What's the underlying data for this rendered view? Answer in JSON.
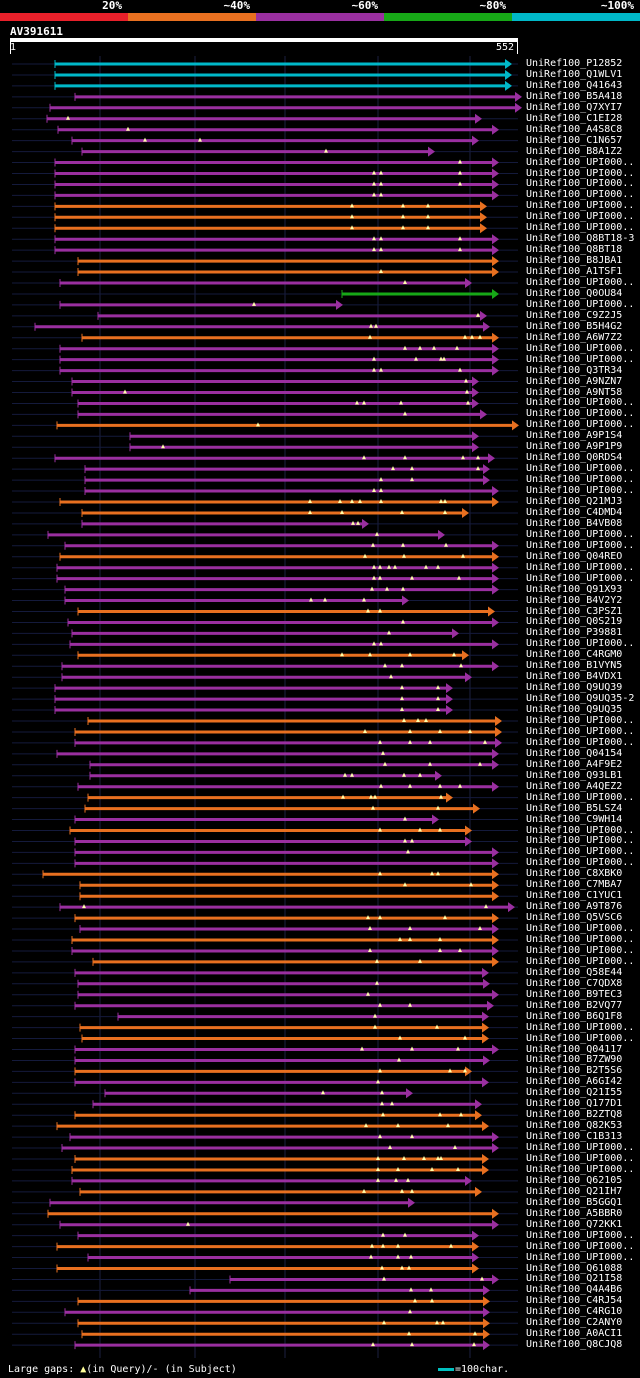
{
  "legend": [
    {
      "label": "20%",
      "color": "#e8202a"
    },
    {
      "label": "~40%",
      "color": "#e87020"
    },
    {
      "label": "~60%",
      "color": "#9a2fa0"
    },
    {
      "label": "~80%",
      "color": "#17a817"
    },
    {
      "label": "~100%",
      "color": "#00b8c8"
    }
  ],
  "query": {
    "id": "AV391611",
    "start": "1",
    "end": "552",
    "length": 552
  },
  "gap_color": "#ffffaa",
  "hits": [
    {
      "name": "UniRef100_P12852",
      "s": 55,
      "e": 505,
      "c": "cyan",
      "g": []
    },
    {
      "name": "UniRef100_Q1WLV1",
      "s": 55,
      "e": 505,
      "c": "cyan",
      "g": []
    },
    {
      "name": "UniRef100_Q41643",
      "s": 55,
      "e": 505,
      "c": "cyan",
      "g": []
    },
    {
      "name": "UniRef100_B5A418",
      "s": 75,
      "e": 515,
      "c": "purple",
      "g": []
    },
    {
      "name": "UniRef100_Q7XYI7",
      "s": 50,
      "e": 515,
      "c": "purple",
      "g": []
    },
    {
      "name": "UniRef100_C1EI28",
      "s": 47,
      "e": 475,
      "c": "purple",
      "g": [
        68
      ]
    },
    {
      "name": "UniRef100_A4S8C8",
      "s": 58,
      "e": 492,
      "c": "purple",
      "g": [
        128
      ]
    },
    {
      "name": "UniRef100_C1N657",
      "s": 72,
      "e": 472,
      "c": "purple",
      "g": [
        145,
        200
      ]
    },
    {
      "name": "UniRef100_B8A1Z2",
      "s": 82,
      "e": 428,
      "c": "purple",
      "g": [
        326
      ]
    },
    {
      "name": "UniRef100_UPI000..",
      "s": 55,
      "e": 492,
      "c": "purple",
      "g": [
        460
      ]
    },
    {
      "name": "UniRef100_UPI000..",
      "s": 55,
      "e": 492,
      "c": "purple",
      "g": [
        374,
        381,
        460
      ]
    },
    {
      "name": "UniRef100_UPI000..",
      "s": 55,
      "e": 492,
      "c": "purple",
      "g": [
        374,
        381,
        460
      ]
    },
    {
      "name": "UniRef100_UPI000..",
      "s": 55,
      "e": 492,
      "c": "purple",
      "g": [
        374,
        381
      ]
    },
    {
      "name": "UniRef100_UPI000..",
      "s": 55,
      "e": 480,
      "c": "orange",
      "g": [
        352,
        403,
        428
      ]
    },
    {
      "name": "UniRef100_UPI000..",
      "s": 55,
      "e": 480,
      "c": "orange",
      "g": [
        352,
        403,
        428
      ]
    },
    {
      "name": "UniRef100_UPI000..",
      "s": 55,
      "e": 480,
      "c": "orange",
      "g": [
        352,
        403,
        428
      ]
    },
    {
      "name": "UniRef100_Q8BT18-3",
      "s": 55,
      "e": 492,
      "c": "purple",
      "g": [
        374,
        381,
        460
      ]
    },
    {
      "name": "UniRef100_Q8BT18",
      "s": 55,
      "e": 492,
      "c": "purple",
      "g": [
        374,
        381,
        460
      ]
    },
    {
      "name": "UniRef100_B8JBA1",
      "s": 78,
      "e": 492,
      "c": "orange",
      "g": []
    },
    {
      "name": "UniRef100_A1TSF1",
      "s": 78,
      "e": 492,
      "c": "orange",
      "g": [
        381
      ]
    },
    {
      "name": "UniRef100_UPI000..",
      "s": 60,
      "e": 465,
      "c": "purple",
      "g": [
        405
      ]
    },
    {
      "name": "UniRef100_Q0OU84",
      "s": 342,
      "e": 492,
      "c": "green",
      "g": []
    },
    {
      "name": "UniRef100_UPI000..",
      "s": 60,
      "e": 336,
      "c": "purple",
      "g": [
        254
      ]
    },
    {
      "name": "UniRef100_C9Z2J5",
      "s": 98,
      "e": 480,
      "c": "purple",
      "g": [
        478
      ]
    },
    {
      "name": "UniRef100_B5H4G2",
      "s": 35,
      "e": 483,
      "c": "purple",
      "g": [
        371,
        376
      ]
    },
    {
      "name": "UniRef100_A6W7Z2",
      "s": 82,
      "e": 492,
      "c": "orange",
      "g": [
        370,
        465,
        472,
        480
      ]
    },
    {
      "name": "UniRef100_UPI000..",
      "s": 60,
      "e": 492,
      "c": "purple",
      "g": [
        405,
        420,
        434,
        457
      ]
    },
    {
      "name": "UniRef100_UPI000..",
      "s": 60,
      "e": 492,
      "c": "purple",
      "g": [
        374,
        416,
        441,
        444
      ]
    },
    {
      "name": "UniRef100_Q3TR34",
      "s": 60,
      "e": 492,
      "c": "purple",
      "g": [
        374,
        381,
        460
      ]
    },
    {
      "name": "UniRef100_A9NZN7",
      "s": 72,
      "e": 472,
      "c": "purple",
      "g": [
        466
      ]
    },
    {
      "name": "UniRef100_A9NT58",
      "s": 72,
      "e": 472,
      "c": "purple",
      "g": [
        125,
        467
      ]
    },
    {
      "name": "UniRef100_UPI000..",
      "s": 78,
      "e": 472,
      "c": "purple",
      "g": [
        357,
        364,
        401,
        468
      ]
    },
    {
      "name": "UniRef100_UPI000..",
      "s": 78,
      "e": 480,
      "c": "purple",
      "g": [
        405
      ]
    },
    {
      "name": "UniRef100_UPI000..",
      "s": 57,
      "e": 512,
      "c": "orange",
      "g": [
        258
      ]
    },
    {
      "name": "UniRef100_A9P1S4",
      "s": 130,
      "e": 472,
      "c": "purple",
      "g": []
    },
    {
      "name": "UniRef100_A9P1P9",
      "s": 130,
      "e": 472,
      "c": "purple",
      "g": [
        163
      ]
    },
    {
      "name": "UniRef100_Q0RDS4",
      "s": 55,
      "e": 488,
      "c": "purple",
      "g": [
        364,
        405,
        463,
        478
      ]
    },
    {
      "name": "UniRef100_UPI000..",
      "s": 85,
      "e": 483,
      "c": "purple",
      "g": [
        393,
        412,
        478
      ]
    },
    {
      "name": "UniRef100_UPI000..",
      "s": 85,
      "e": 483,
      "c": "purple",
      "g": [
        381,
        412
      ]
    },
    {
      "name": "UniRef100_UPI000..",
      "s": 85,
      "e": 492,
      "c": "purple",
      "g": [
        374,
        381
      ]
    },
    {
      "name": "UniRef100_Q21MJ3",
      "s": 60,
      "e": 492,
      "c": "orange",
      "g": [
        310,
        340,
        352,
        360,
        381,
        441,
        445
      ]
    },
    {
      "name": "UniRef100_C4DMD4",
      "s": 82,
      "e": 462,
      "c": "orange",
      "g": [
        310,
        342,
        402,
        445
      ]
    },
    {
      "name": "UniRef100_B4VB08",
      "s": 82,
      "e": 362,
      "c": "purple",
      "g": [
        353,
        358
      ]
    },
    {
      "name": "UniRef100_UPI000..",
      "s": 48,
      "e": 438,
      "c": "purple",
      "g": [
        377
      ]
    },
    {
      "name": "UniRef100_UPI000..",
      "s": 65,
      "e": 492,
      "c": "purple",
      "g": [
        373,
        403,
        446
      ]
    },
    {
      "name": "UniRef100_Q04REO",
      "s": 60,
      "e": 492,
      "c": "orange",
      "g": [
        365,
        404,
        463
      ]
    },
    {
      "name": "UniRef100_UPI000..",
      "s": 57,
      "e": 492,
      "c": "purple",
      "g": [
        374,
        380,
        389,
        395,
        426,
        438
      ]
    },
    {
      "name": "UniRef100_UPI000..",
      "s": 57,
      "e": 492,
      "c": "purple",
      "g": [
        374,
        380,
        412,
        459
      ]
    },
    {
      "name": "UniRef100_Q91X93",
      "s": 65,
      "e": 492,
      "c": "purple",
      "g": [
        372,
        387,
        403
      ]
    },
    {
      "name": "UniRef100_B4V2Y2",
      "s": 65,
      "e": 402,
      "c": "purple",
      "g": [
        311,
        325,
        364
      ]
    },
    {
      "name": "UniRef100_C3PSZ1",
      "s": 78,
      "e": 488,
      "c": "orange",
      "g": [
        368,
        380
      ]
    },
    {
      "name": "UniRef100_Q0S219",
      "s": 68,
      "e": 492,
      "c": "purple",
      "g": [
        403
      ]
    },
    {
      "name": "UniRef100_P39881",
      "s": 72,
      "e": 452,
      "c": "purple",
      "g": [
        389
      ]
    },
    {
      "name": "UniRef100_UPI000..",
      "s": 70,
      "e": 492,
      "c": "purple",
      "g": [
        374,
        381
      ]
    },
    {
      "name": "UniRef100_C4RGM0",
      "s": 78,
      "e": 462,
      "c": "orange",
      "g": [
        342,
        370,
        410,
        454
      ]
    },
    {
      "name": "UniRef100_B1VYN5",
      "s": 62,
      "e": 492,
      "c": "purple",
      "g": [
        385,
        402,
        461
      ]
    },
    {
      "name": "UniRef100_B4VDX1",
      "s": 62,
      "e": 465,
      "c": "purple",
      "g": [
        391
      ]
    },
    {
      "name": "UniRef100_Q9UQ39",
      "s": 55,
      "e": 446,
      "c": "purple",
      "g": [
        402,
        438
      ]
    },
    {
      "name": "UniRef100_Q9UQ35-2",
      "s": 55,
      "e": 446,
      "c": "purple",
      "g": [
        402,
        438
      ]
    },
    {
      "name": "UniRef100_Q9UQ35",
      "s": 55,
      "e": 446,
      "c": "purple",
      "g": [
        402,
        438
      ]
    },
    {
      "name": "UniRef100_UPI000..",
      "s": 88,
      "e": 495,
      "c": "orange",
      "g": [
        404,
        418,
        426
      ]
    },
    {
      "name": "UniRef100_UPI000..",
      "s": 75,
      "e": 495,
      "c": "orange",
      "g": [
        365,
        410,
        440,
        470
      ]
    },
    {
      "name": "UniRef100_UPI000..",
      "s": 75,
      "e": 495,
      "c": "purple",
      "g": [
        380,
        410,
        430,
        485
      ]
    },
    {
      "name": "UniRef100_Q04154",
      "s": 57,
      "e": 492,
      "c": "purple",
      "g": [
        383
      ]
    },
    {
      "name": "UniRef100_A4F9E2",
      "s": 90,
      "e": 492,
      "c": "purple",
      "g": [
        385,
        430,
        480
      ]
    },
    {
      "name": "UniRef100_Q93LB1",
      "s": 90,
      "e": 435,
      "c": "purple",
      "g": [
        345,
        352,
        404,
        420
      ]
    },
    {
      "name": "UniRef100_A4QEZ2",
      "s": 78,
      "e": 492,
      "c": "purple",
      "g": [
        381,
        410,
        440,
        460
      ]
    },
    {
      "name": "UniRef100_UPI000..",
      "s": 88,
      "e": 446,
      "c": "orange",
      "g": [
        343,
        371,
        375,
        441
      ]
    },
    {
      "name": "UniRef100_B5LSZ4",
      "s": 85,
      "e": 473,
      "c": "orange",
      "g": [
        373,
        438
      ]
    },
    {
      "name": "UniRef100_C9WH14",
      "s": 75,
      "e": 432,
      "c": "purple",
      "g": [
        405
      ]
    },
    {
      "name": "UniRef100_UPI000..",
      "s": 70,
      "e": 465,
      "c": "orange",
      "g": [
        380,
        420,
        440
      ]
    },
    {
      "name": "UniRef100_UPI000..",
      "s": 75,
      "e": 465,
      "c": "purple",
      "g": [
        405,
        412
      ]
    },
    {
      "name": "UniRef100_UPI000..",
      "s": 75,
      "e": 492,
      "c": "purple",
      "g": [
        408
      ]
    },
    {
      "name": "UniRef100_UPI000..",
      "s": 75,
      "e": 492,
      "c": "purple",
      "g": []
    },
    {
      "name": "UniRef100_C8XBK0",
      "s": 43,
      "e": 492,
      "c": "orange",
      "g": [
        380,
        432,
        438
      ]
    },
    {
      "name": "UniRef100_C7MBA7",
      "s": 80,
      "e": 492,
      "c": "orange",
      "g": [
        405,
        471
      ]
    },
    {
      "name": "UniRef100_C1YUC1",
      "s": 80,
      "e": 492,
      "c": "orange",
      "g": []
    },
    {
      "name": "UniRef100_A9T876",
      "s": 60,
      "e": 508,
      "c": "purple",
      "g": [
        84,
        486
      ]
    },
    {
      "name": "UniRef100_Q5VSC6",
      "s": 75,
      "e": 492,
      "c": "orange",
      "g": [
        368,
        380,
        445
      ]
    },
    {
      "name": "UniRef100_UPI000..",
      "s": 80,
      "e": 492,
      "c": "purple",
      "g": [
        370,
        410,
        480
      ]
    },
    {
      "name": "UniRef100_UPI000..",
      "s": 72,
      "e": 492,
      "c": "orange",
      "g": [
        400,
        410,
        440
      ]
    },
    {
      "name": "UniRef100_UPI000..",
      "s": 72,
      "e": 492,
      "c": "purple",
      "g": [
        370,
        440,
        460
      ]
    },
    {
      "name": "UniRef100_UPI000..",
      "s": 93,
      "e": 492,
      "c": "orange",
      "g": [
        377,
        420
      ]
    },
    {
      "name": "UniRef100_Q58E44",
      "s": 75,
      "e": 482,
      "c": "purple",
      "g": []
    },
    {
      "name": "UniRef100_C7QDX8",
      "s": 78,
      "e": 483,
      "c": "purple",
      "g": [
        377
      ]
    },
    {
      "name": "UniRef100_B9TEC3",
      "s": 78,
      "e": 492,
      "c": "purple",
      "g": [
        368
      ]
    },
    {
      "name": "UniRef100_B2VQ77",
      "s": 75,
      "e": 487,
      "c": "purple",
      "g": [
        380,
        410
      ]
    },
    {
      "name": "UniRef100_B6Q1F8",
      "s": 118,
      "e": 482,
      "c": "purple",
      "g": [
        375
      ]
    },
    {
      "name": "UniRef100_UPI000..",
      "s": 80,
      "e": 482,
      "c": "orange",
      "g": [
        375,
        437
      ]
    },
    {
      "name": "UniRef100_UPI000..",
      "s": 82,
      "e": 482,
      "c": "orange",
      "g": [
        400,
        465
      ]
    },
    {
      "name": "UniRef100_Q04117",
      "s": 75,
      "e": 492,
      "c": "purple",
      "g": [
        362,
        412,
        458
      ]
    },
    {
      "name": "UniRef100_B7ZW90",
      "s": 75,
      "e": 483,
      "c": "purple",
      "g": [
        399
      ]
    },
    {
      "name": "UniRef100_B2T5S6",
      "s": 75,
      "e": 465,
      "c": "orange",
      "g": [
        380,
        450,
        465
      ]
    },
    {
      "name": "UniRef100_A6GI42",
      "s": 75,
      "e": 482,
      "c": "purple",
      "g": [
        378
      ]
    },
    {
      "name": "UniRef100_Q21I55",
      "s": 105,
      "e": 406,
      "c": "purple",
      "g": [
        323,
        382
      ]
    },
    {
      "name": "UniRef100_Q177D1",
      "s": 93,
      "e": 475,
      "c": "purple",
      "g": [
        382,
        392
      ]
    },
    {
      "name": "UniRef100_B2ZTQ8",
      "s": 75,
      "e": 475,
      "c": "orange",
      "g": [
        383,
        440,
        461
      ]
    },
    {
      "name": "UniRef100_Q82K53",
      "s": 57,
      "e": 482,
      "c": "orange",
      "g": [
        366,
        398,
        448
      ]
    },
    {
      "name": "UniRef100_C1B313",
      "s": 70,
      "e": 492,
      "c": "purple",
      "g": [
        380,
        412
      ]
    },
    {
      "name": "UniRef100_UPI000..",
      "s": 62,
      "e": 492,
      "c": "purple",
      "g": [
        390,
        455
      ]
    },
    {
      "name": "UniRef100_UPI000..",
      "s": 75,
      "e": 482,
      "c": "orange",
      "g": [
        378,
        404,
        424,
        438,
        441
      ]
    },
    {
      "name": "UniRef100_UPI000..",
      "s": 72,
      "e": 482,
      "c": "orange",
      "g": [
        378,
        398,
        432,
        458
      ]
    },
    {
      "name": "UniRef100_Q62105",
      "s": 72,
      "e": 465,
      "c": "purple",
      "g": [
        378,
        396,
        408
      ]
    },
    {
      "name": "UniRef100_Q21IH7",
      "s": 80,
      "e": 475,
      "c": "orange",
      "g": [
        364,
        402,
        412
      ]
    },
    {
      "name": "UniRef100_B5GGQ1",
      "s": 50,
      "e": 408,
      "c": "purple",
      "g": []
    },
    {
      "name": "UniRef100_A5BBR0",
      "s": 48,
      "e": 492,
      "c": "orange",
      "g": []
    },
    {
      "name": "UniRef100_Q72KK1",
      "s": 60,
      "e": 492,
      "c": "purple",
      "g": [
        188
      ]
    },
    {
      "name": "UniRef100_UPI000..",
      "s": 78,
      "e": 472,
      "c": "purple",
      "g": [
        383,
        405
      ]
    },
    {
      "name": "UniRef100_UPI000..",
      "s": 57,
      "e": 472,
      "c": "orange",
      "g": [
        372,
        383,
        398,
        451
      ]
    },
    {
      "name": "UniRef100_UPI000..",
      "s": 88,
      "e": 472,
      "c": "purple",
      "g": [
        371,
        398,
        411
      ]
    },
    {
      "name": "UniRef100_Q61088",
      "s": 57,
      "e": 472,
      "c": "orange",
      "g": [
        382,
        402,
        409
      ]
    },
    {
      "name": "UniRef100_Q21I58",
      "s": 230,
      "e": 492,
      "c": "purple",
      "g": [
        384,
        482
      ]
    },
    {
      "name": "UniRef100_Q4A4B6",
      "s": 190,
      "e": 483,
      "c": "purple",
      "g": [
        411,
        431
      ]
    },
    {
      "name": "UniRef100_C4RJ54",
      "s": 78,
      "e": 483,
      "c": "orange",
      "g": [
        415,
        432
      ]
    },
    {
      "name": "UniRef100_C4RG10",
      "s": 65,
      "e": 483,
      "c": "purple",
      "g": [
        410
      ]
    },
    {
      "name": "UniRef100_C2ANY0",
      "s": 78,
      "e": 483,
      "c": "orange",
      "g": [
        384,
        437,
        443
      ]
    },
    {
      "name": "UniRef100_A0ACI1",
      "s": 82,
      "e": 483,
      "c": "orange",
      "g": [
        409,
        475
      ]
    },
    {
      "name": "UniRef100_Q8CJQ8",
      "s": 75,
      "e": 483,
      "c": "purple",
      "g": [
        373,
        412,
        474
      ]
    }
  ],
  "footer": {
    "gaps_text": "Large gaps:",
    "query_note": "(in Query)/-",
    "subject_note": "(in Subject)",
    "scale_text": "=100char."
  }
}
